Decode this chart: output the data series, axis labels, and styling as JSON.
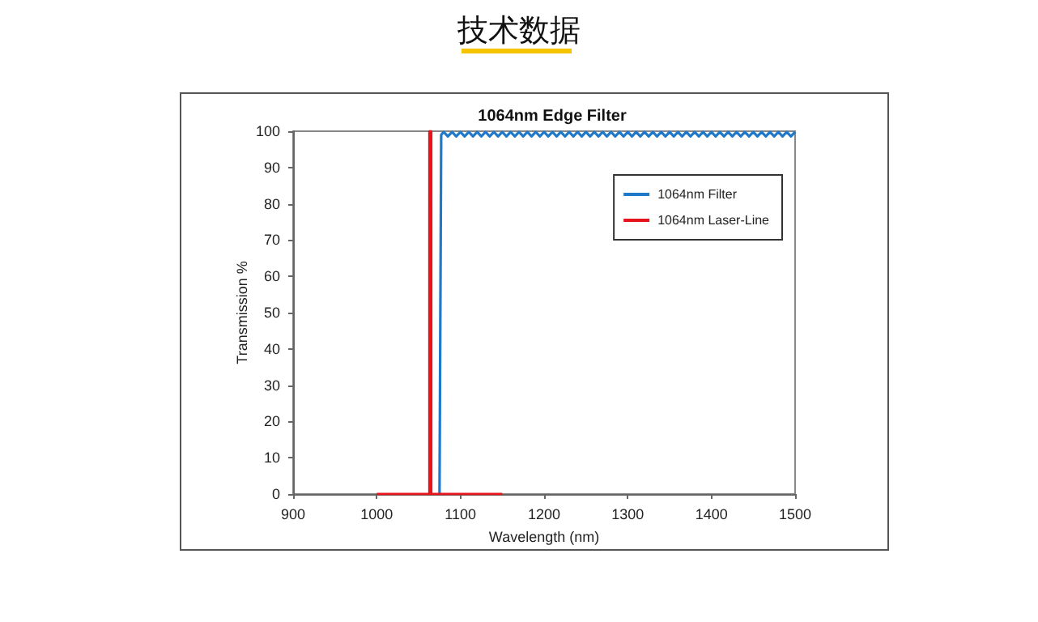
{
  "chart_data": {
    "type": "line",
    "title": "技术数据",
    "subtitle": "1064nm Edge Filter",
    "xlabel": "Wavelength (nm)",
    "ylabel": "Transmission %",
    "xlim": [
      900,
      1500
    ],
    "xticks": [
      900,
      1000,
      1100,
      1200,
      1300,
      1400,
      1500
    ],
    "ylim": [
      0,
      100
    ],
    "yticks": [
      0,
      10,
      20,
      30,
      40,
      50,
      60,
      70,
      80,
      90,
      100
    ],
    "grid": false,
    "legend": "top right",
    "marker": "none",
    "line_style": "solid",
    "series": [
      {
        "name": "1064nm Filter",
        "color": "#1f78c8",
        "x": [
          1075,
          1077,
          1080,
          1085,
          1090,
          1095,
          1100,
          1105,
          1110,
          1115,
          1120,
          1125,
          1130,
          1135,
          1140,
          1145,
          1150,
          1155,
          1160,
          1165,
          1170,
          1175,
          1180,
          1185,
          1190,
          1195,
          1200,
          1205,
          1210,
          1215,
          1220,
          1225,
          1230,
          1235,
          1240,
          1245,
          1250,
          1255,
          1260,
          1265,
          1270,
          1275,
          1280,
          1285,
          1290,
          1295,
          1300,
          1305,
          1310,
          1315,
          1320,
          1325,
          1330,
          1335,
          1340,
          1345,
          1350,
          1355,
          1360,
          1365,
          1370,
          1375,
          1380,
          1385,
          1390,
          1395,
          1400,
          1405,
          1410,
          1415,
          1420,
          1425,
          1430,
          1435,
          1440,
          1445,
          1450,
          1455,
          1460,
          1465,
          1470,
          1475,
          1480,
          1485,
          1490,
          1495,
          1500
        ],
        "values": [
          0,
          99,
          99.8,
          98.6,
          99.8,
          98.6,
          99.8,
          98.6,
          99.8,
          98.6,
          99.8,
          98.6,
          99.8,
          98.6,
          99.8,
          98.6,
          99.8,
          98.6,
          99.8,
          98.6,
          99.8,
          98.6,
          99.8,
          98.6,
          99.8,
          98.6,
          99.8,
          98.6,
          99.8,
          98.6,
          99.8,
          98.6,
          99.8,
          98.6,
          99.8,
          98.6,
          99.8,
          98.6,
          99.8,
          98.6,
          99.8,
          98.6,
          99.8,
          98.6,
          99.8,
          98.6,
          99.8,
          98.6,
          99.8,
          98.6,
          99.8,
          98.6,
          99.8,
          98.6,
          99.8,
          98.6,
          99.8,
          98.6,
          99.8,
          98.6,
          99.8,
          98.6,
          99.8,
          98.6,
          99.8,
          98.6,
          99.8,
          98.6,
          99.8,
          98.6,
          99.8,
          98.6,
          99.8,
          98.6,
          99.8,
          98.6,
          99.8,
          98.6,
          99.8,
          98.6,
          99.8,
          98.6,
          99.8,
          98.6,
          99.8,
          98.6,
          99.8
        ]
      },
      {
        "name": "1064nm Laser-Line",
        "color": "#e8141c",
        "x": [
          1000,
          1063,
          1063,
          1065,
          1065,
          1150
        ],
        "values": [
          0,
          0,
          100,
          100,
          0,
          0
        ]
      }
    ]
  }
}
